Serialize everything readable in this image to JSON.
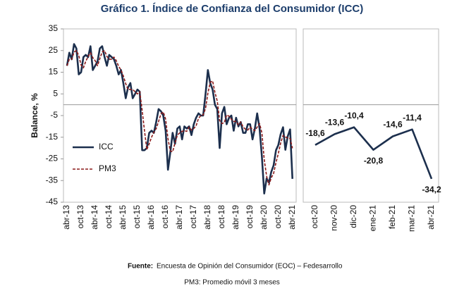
{
  "title": "Gráfico 1. Índice de Confianza del Consumidor (ICC)",
  "chart_data": [
    {
      "type": "line",
      "ylabel": "Balance, %",
      "ylim": [
        -45,
        35
      ],
      "yticks": [
        35,
        25,
        15,
        5,
        -5,
        -15,
        -25,
        -35,
        -45
      ],
      "categories": [
        "abr-13",
        null,
        null,
        null,
        null,
        null,
        "oct-13",
        null,
        null,
        null,
        null,
        null,
        "abr-14",
        null,
        null,
        null,
        null,
        null,
        "oct-14",
        null,
        null,
        null,
        null,
        null,
        "abr-15",
        null,
        null,
        null,
        null,
        null,
        "oct-15",
        null,
        null,
        null,
        null,
        null,
        "abr-16",
        null,
        null,
        null,
        null,
        null,
        "oct-16",
        null,
        null,
        null,
        null,
        null,
        "abr-17",
        null,
        null,
        null,
        null,
        null,
        "oct-17",
        null,
        null,
        null,
        null,
        null,
        "abr-18",
        null,
        null,
        null,
        null,
        null,
        "oct-18",
        null,
        null,
        null,
        null,
        null,
        "abr-19",
        null,
        null,
        null,
        null,
        null,
        "oct-19",
        null,
        null,
        null,
        null,
        null,
        "abr-20",
        null,
        null,
        null,
        null,
        null,
        "oct-20",
        null,
        null,
        null,
        null,
        null,
        "abr-21"
      ],
      "series": [
        {
          "name": "ICC",
          "color": "#1c2f4d",
          "dashed": false,
          "values": [
            18,
            24,
            21,
            28,
            26,
            14,
            15,
            22,
            23,
            22,
            27,
            16,
            18,
            20,
            26,
            27,
            22,
            18,
            23,
            22,
            21,
            18,
            14,
            16,
            10,
            3,
            8,
            10,
            3,
            5,
            7,
            6,
            -21,
            -21,
            -20,
            -13,
            -12,
            -13,
            -8,
            -2,
            -3,
            -5,
            -12,
            -30,
            -22,
            -13,
            -18,
            -11,
            -10,
            -16,
            -10,
            -11,
            -10,
            -14,
            -9,
            -6,
            -4,
            -5,
            -5,
            5,
            16,
            10,
            7,
            0,
            -2,
            -20,
            -4,
            -1,
            -9,
            -6,
            -5,
            -12,
            -6,
            -10,
            -8,
            -13,
            -13,
            -9,
            -9,
            -16,
            -11,
            -4,
            -11,
            -24,
            -41,
            -34,
            -36,
            -31,
            -28,
            -21,
            -18.6,
            -13.6,
            -10.4,
            -20.8,
            -14.6,
            -11.4,
            -34.2
          ]
        },
        {
          "name": "PM3",
          "color": "#8b1a1a",
          "dashed": true,
          "values": [
            18,
            21,
            21,
            24.3,
            25,
            22.7,
            18.3,
            17,
            20,
            22.3,
            24,
            21.7,
            20.3,
            18,
            21.3,
            24.3,
            25,
            22.3,
            21,
            21,
            22,
            20.3,
            17.7,
            16,
            13.3,
            9.7,
            7,
            7,
            7,
            6,
            5,
            6,
            -2.7,
            -12,
            -20.7,
            -18,
            -15,
            -12.7,
            -11,
            -7.7,
            -4.3,
            -3.3,
            -6.7,
            -15.7,
            -21.3,
            -21.7,
            -17.7,
            -14,
            -13,
            -12.3,
            -12,
            -12.3,
            -10.3,
            -11.7,
            -11,
            -9.7,
            -6.3,
            -5,
            -4.7,
            -1.7,
            5.3,
            10.3,
            11,
            5.7,
            1.7,
            -7.3,
            -8.7,
            -8.3,
            -4.7,
            -5.3,
            -6.7,
            -7.7,
            -7.7,
            -9.3,
            -8,
            -10.3,
            -11.3,
            -11.7,
            -10.3,
            -11.3,
            -12,
            -10.3,
            -8.7,
            -13,
            -25.3,
            -33,
            -37,
            -33.7,
            -31.7,
            -26.7,
            -22.5,
            -17.7,
            -14.2,
            -14.9,
            -15.3,
            -15.6,
            -20.1
          ]
        }
      ]
    },
    {
      "type": "line",
      "ylim": [
        -45,
        35
      ],
      "categories": [
        "oct-20",
        "nov-20",
        "dic-20",
        "ene-21",
        "feb-21",
        "mar-21",
        "abr-21"
      ],
      "series": [
        {
          "name": "ICC",
          "color": "#1c2f4d",
          "values": [
            -18.6,
            -13.6,
            -10.4,
            -20.8,
            -14.6,
            -11.4,
            -34.2
          ],
          "value_labels": [
            "-18,6",
            "-13,6",
            "-10,4",
            "-20,8",
            "-14,6",
            "-11,4",
            "-34,2"
          ]
        }
      ]
    }
  ],
  "footer": {
    "source_label": "Fuente:",
    "source": "Encuesta de Opinión del Consumidor (EOC) – Fedesarrollo",
    "note": "PM3: Promedio móvil 3 meses"
  }
}
